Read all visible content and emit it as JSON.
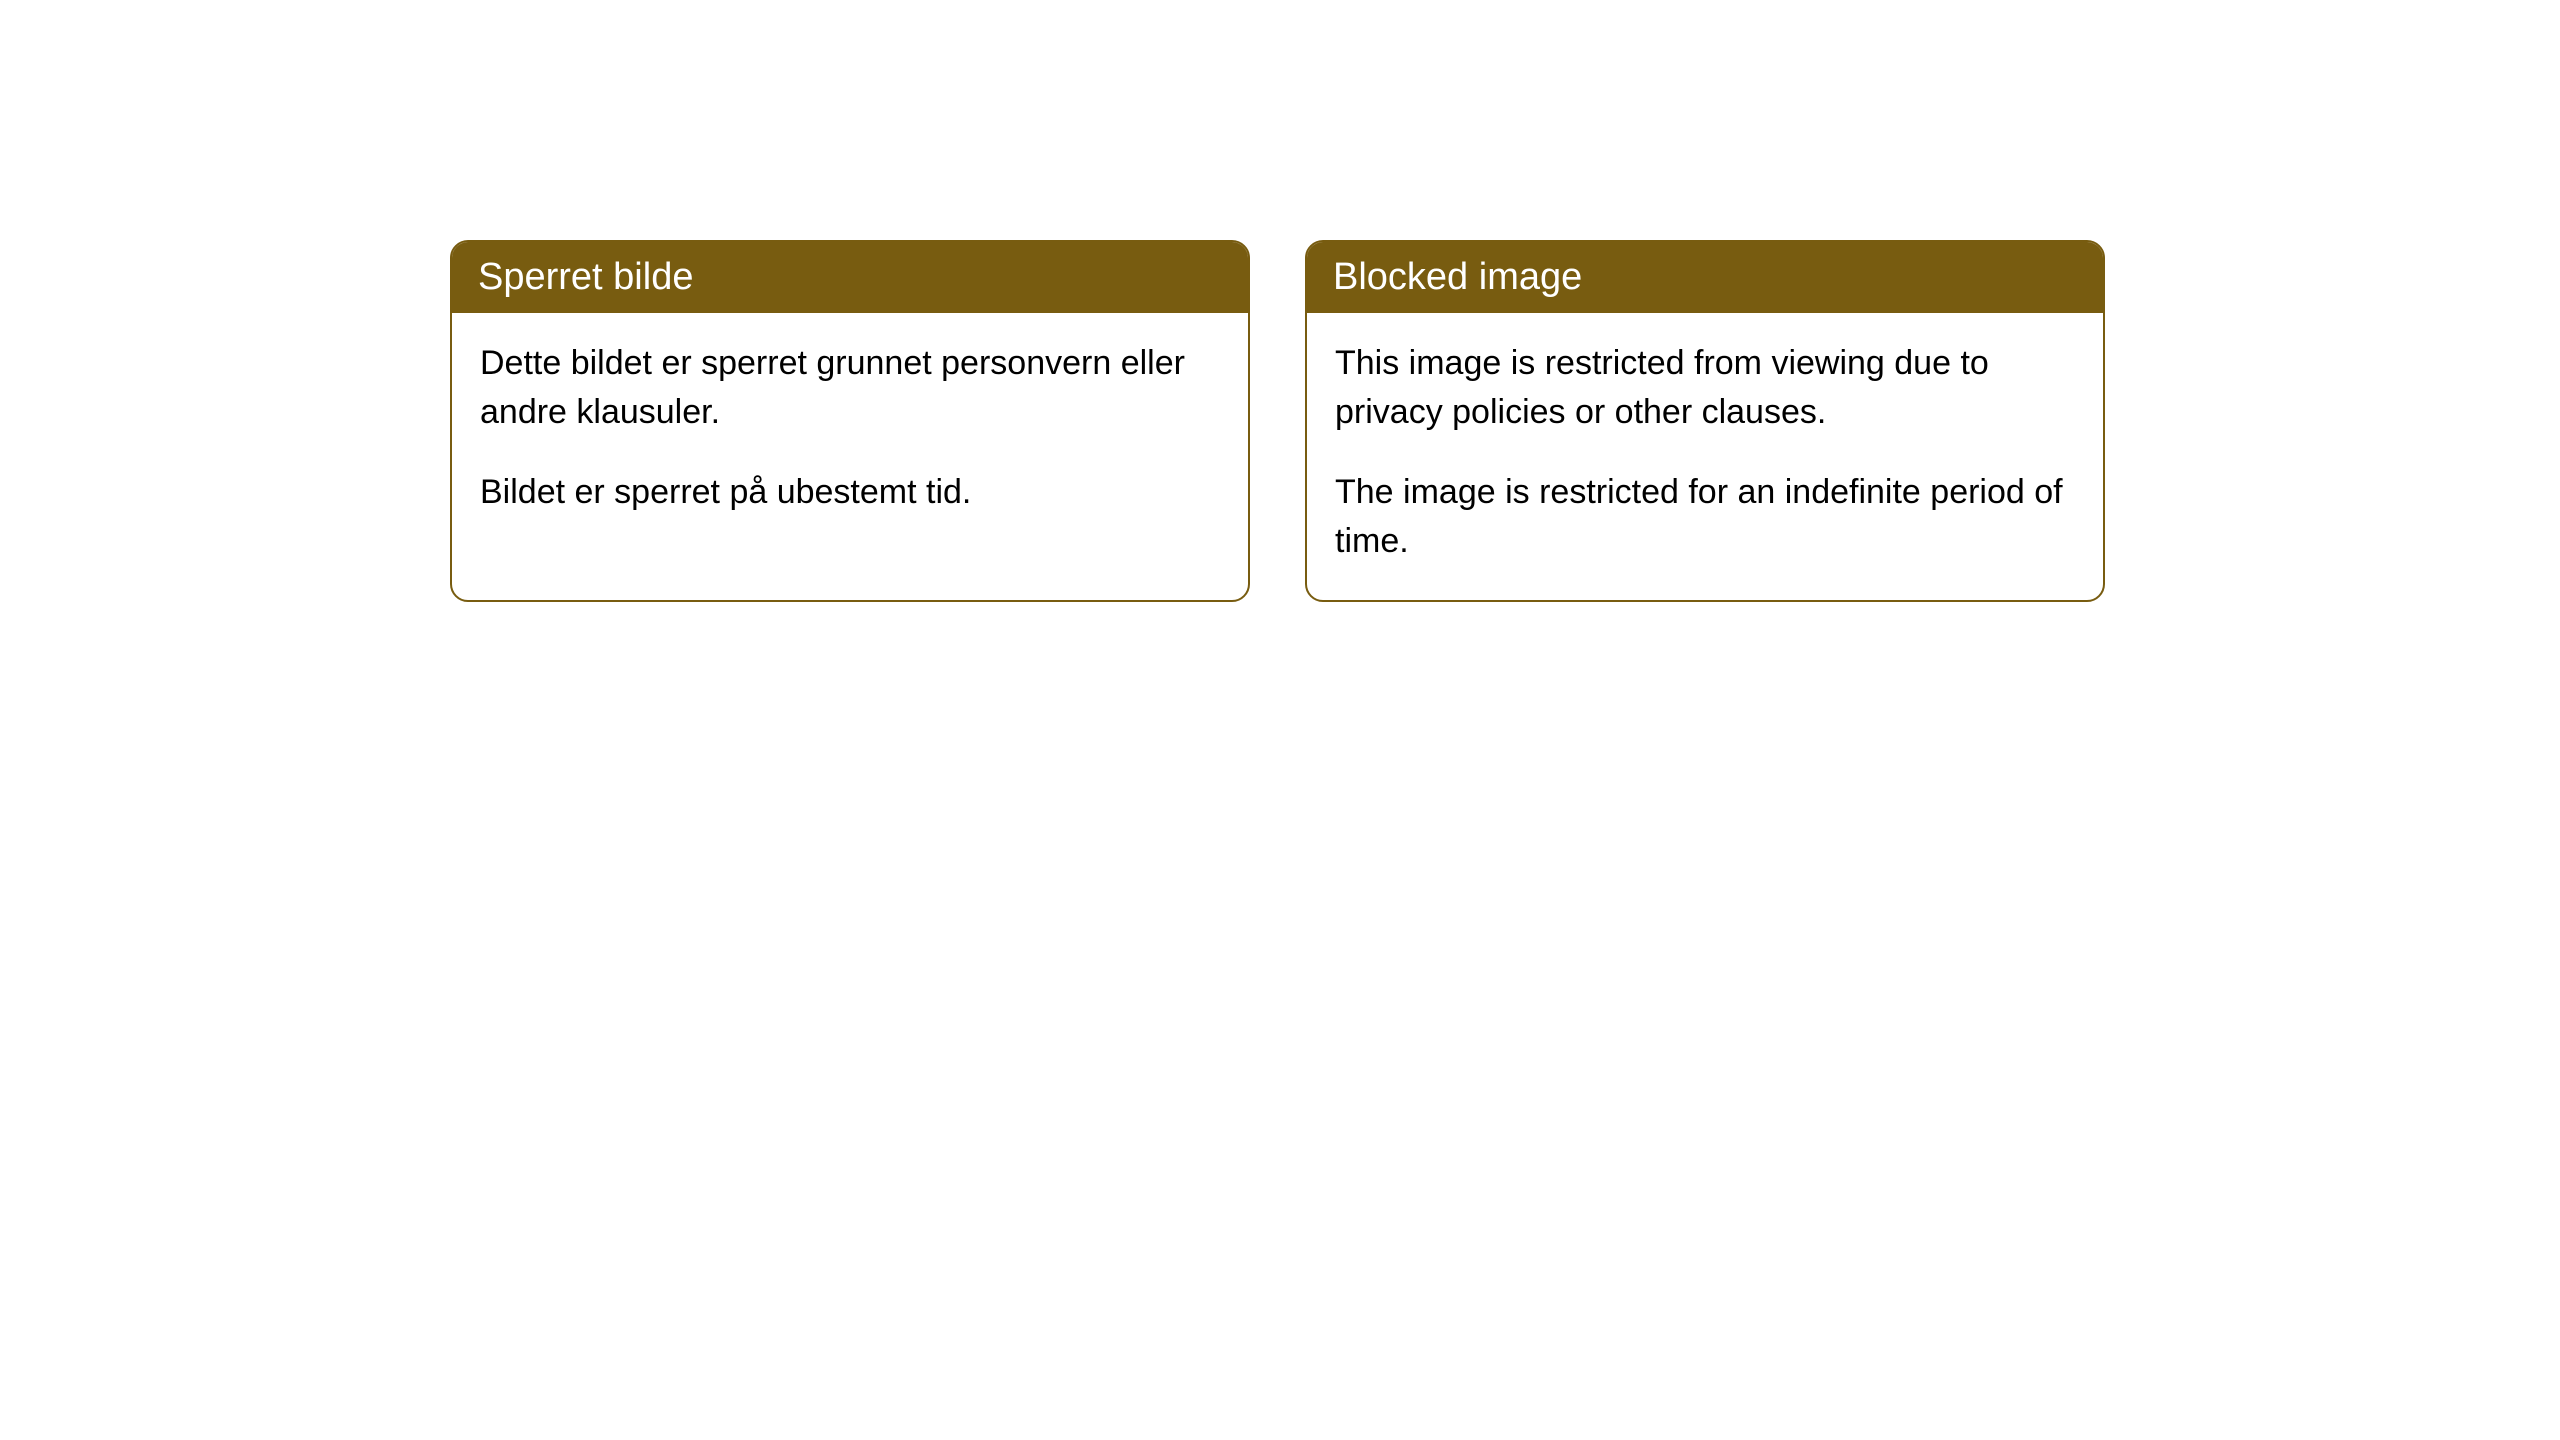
{
  "cards": [
    {
      "title": "Sperret bilde",
      "para1": "Dette bildet er sperret grunnet personvern eller andre klausuler.",
      "para2": "Bildet er sperret på ubestemt tid."
    },
    {
      "title": "Blocked image",
      "para1": "This image is restricted from viewing due to privacy policies or other clauses.",
      "para2": "The image is restricted for an indefinite period of time."
    }
  ],
  "style": {
    "header_bg": "#785c10",
    "header_text_color": "#ffffff",
    "border_color": "#785c10",
    "border_radius": 18,
    "card_bg": "#ffffff",
    "body_text_color": "#000000",
    "title_fontsize": 38,
    "body_fontsize": 34
  }
}
